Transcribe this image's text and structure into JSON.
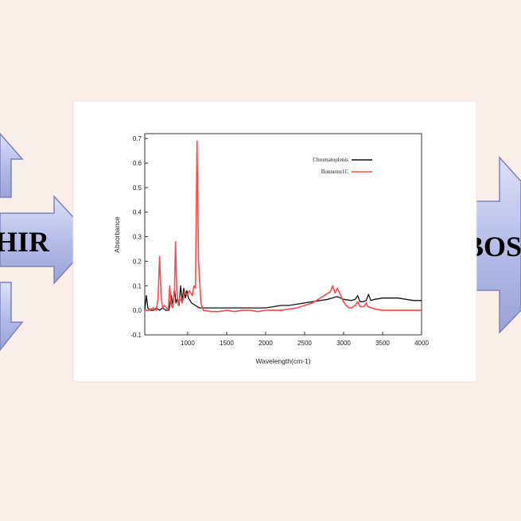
{
  "banners": {
    "left_text": "HIR",
    "right_text": "BOS"
  },
  "colors": {
    "background": "#faeee8",
    "arrow_fill": "#b6bde8",
    "arrow_stroke": "#7c84b8",
    "series_black": "#111111",
    "series_red": "#ff4a4a"
  },
  "chart_data": {
    "type": "line",
    "title": "",
    "xlabel": "Wavelength(cm-1)",
    "ylabel": "Absorbance",
    "xlim": [
      450,
      4000
    ],
    "ylim": [
      -0.1,
      0.72
    ],
    "xticks": [
      "1000",
      "1500",
      "2000",
      "2500",
      "3000",
      "3500",
      "4000"
    ],
    "xtick_values": [
      1000,
      1500,
      2000,
      2500,
      3000,
      3500,
      4000
    ],
    "yticks": [
      "-0.1",
      "0.0",
      "0.1",
      "0.2",
      "0.3",
      "0.4",
      "0.5",
      "0.6",
      "0.7"
    ],
    "ytick_values": [
      -0.1,
      0.0,
      0.1,
      0.2,
      0.3,
      0.4,
      0.5,
      0.6,
      0.7
    ],
    "grid": false,
    "legend_position": "top-right",
    "series": [
      {
        "name": "Chromatoplenis",
        "color": "#111111",
        "points": [
          [
            450,
            0.0
          ],
          [
            470,
            0.06
          ],
          [
            490,
            0.01
          ],
          [
            520,
            0.0
          ],
          [
            560,
            0.0
          ],
          [
            600,
            0.01
          ],
          [
            640,
            0.0
          ],
          [
            680,
            0.01
          ],
          [
            720,
            0.0
          ],
          [
            760,
            0.0
          ],
          [
            790,
            0.06
          ],
          [
            810,
            0.02
          ],
          [
            830,
            0.09
          ],
          [
            850,
            0.03
          ],
          [
            870,
            0.05
          ],
          [
            890,
            0.02
          ],
          [
            910,
            0.1
          ],
          [
            930,
            0.04
          ],
          [
            950,
            0.09
          ],
          [
            970,
            0.05
          ],
          [
            990,
            0.08
          ],
          [
            1010,
            0.05
          ],
          [
            1050,
            0.03
          ],
          [
            1100,
            0.02
          ],
          [
            1150,
            0.01
          ],
          [
            1200,
            0.01
          ],
          [
            1300,
            0.01
          ],
          [
            1400,
            0.01
          ],
          [
            1500,
            0.01
          ],
          [
            1600,
            0.01
          ],
          [
            1700,
            0.01
          ],
          [
            1800,
            0.01
          ],
          [
            1900,
            0.01
          ],
          [
            2000,
            0.01
          ],
          [
            2100,
            0.015
          ],
          [
            2200,
            0.02
          ],
          [
            2300,
            0.02
          ],
          [
            2400,
            0.025
          ],
          [
            2500,
            0.03
          ],
          [
            2600,
            0.035
          ],
          [
            2700,
            0.04
          ],
          [
            2800,
            0.045
          ],
          [
            2850,
            0.05
          ],
          [
            2900,
            0.055
          ],
          [
            2930,
            0.055
          ],
          [
            2960,
            0.05
          ],
          [
            3000,
            0.045
          ],
          [
            3100,
            0.04
          ],
          [
            3150,
            0.045
          ],
          [
            3180,
            0.06
          ],
          [
            3210,
            0.035
          ],
          [
            3250,
            0.035
          ],
          [
            3290,
            0.04
          ],
          [
            3320,
            0.065
          ],
          [
            3350,
            0.04
          ],
          [
            3400,
            0.045
          ],
          [
            3500,
            0.05
          ],
          [
            3600,
            0.05
          ],
          [
            3700,
            0.05
          ],
          [
            3800,
            0.045
          ],
          [
            3900,
            0.04
          ],
          [
            4000,
            0.04
          ]
        ]
      },
      {
        "name": "Bonnemr1C",
        "color": "#ff4a4a",
        "points": [
          [
            450,
            0.0
          ],
          [
            500,
            0.0
          ],
          [
            560,
            0.01
          ],
          [
            600,
            0.0
          ],
          [
            620,
            0.05
          ],
          [
            640,
            0.22
          ],
          [
            660,
            0.05
          ],
          [
            680,
            0.01
          ],
          [
            700,
            0.02
          ],
          [
            730,
            0.01
          ],
          [
            750,
            0.0
          ],
          [
            770,
            0.1
          ],
          [
            790,
            0.02
          ],
          [
            810,
            0.01
          ],
          [
            830,
            0.08
          ],
          [
            845,
            0.28
          ],
          [
            860,
            0.08
          ],
          [
            880,
            0.02
          ],
          [
            900,
            0.05
          ],
          [
            930,
            0.03
          ],
          [
            960,
            0.08
          ],
          [
            990,
            0.06
          ],
          [
            1020,
            0.08
          ],
          [
            1060,
            0.06
          ],
          [
            1080,
            0.1
          ],
          [
            1100,
            0.09
          ],
          [
            1120,
            0.69
          ],
          [
            1140,
            0.2
          ],
          [
            1170,
            0.03
          ],
          [
            1200,
            0.0
          ],
          [
            1300,
            -0.005
          ],
          [
            1400,
            -0.005
          ],
          [
            1500,
            0.0
          ],
          [
            1600,
            -0.005
          ],
          [
            1700,
            0.0
          ],
          [
            1800,
            0.0
          ],
          [
            1900,
            -0.005
          ],
          [
            2000,
            0.0
          ],
          [
            2100,
            0.0
          ],
          [
            2200,
            0.0
          ],
          [
            2300,
            0.005
          ],
          [
            2400,
            0.01
          ],
          [
            2500,
            0.02
          ],
          [
            2600,
            0.03
          ],
          [
            2700,
            0.05
          ],
          [
            2800,
            0.07
          ],
          [
            2830,
            0.075
          ],
          [
            2860,
            0.1
          ],
          [
            2890,
            0.07
          ],
          [
            2920,
            0.09
          ],
          [
            2950,
            0.07
          ],
          [
            2990,
            0.04
          ],
          [
            3030,
            0.02
          ],
          [
            3070,
            0.01
          ],
          [
            3100,
            0.01
          ],
          [
            3150,
            0.02
          ],
          [
            3180,
            0.035
          ],
          [
            3210,
            0.015
          ],
          [
            3260,
            0.015
          ],
          [
            3290,
            0.03
          ],
          [
            3310,
            0.015
          ],
          [
            3400,
            0.005
          ],
          [
            3500,
            0.0
          ],
          [
            3600,
            0.0
          ],
          [
            3700,
            0.0
          ],
          [
            3800,
            0.0
          ],
          [
            3900,
            0.0
          ],
          [
            4000,
            0.0
          ]
        ]
      }
    ]
  }
}
